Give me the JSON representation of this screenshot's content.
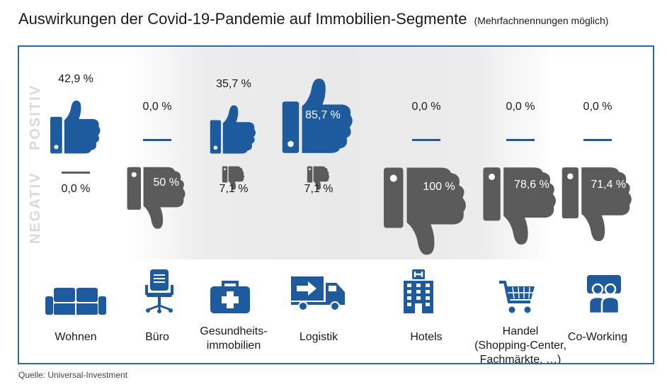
{
  "title": "Auswirkungen der Covid-19-Pandemie auf Immobilien-Segmente",
  "subtitle": "(Mehrfachnennungen möglich)",
  "source": "Quelle: Universal-Investment",
  "colors": {
    "positive": "#1d5b9e",
    "negative": "#5b5b5b",
    "frame": "#2a6aa8",
    "side_label": "#d9d9d9"
  },
  "chart_data": {
    "type": "table",
    "row_labels": [
      "POSITIV",
      "NEGATIV"
    ],
    "categories": [
      "Wohnen",
      "Büro",
      "Gesundheits-\nimmobilien",
      "Logistik",
      "Hotels",
      "Handel\n(Shopping-Center,\nFachmärkte, …)",
      "Co-Working"
    ],
    "icons": [
      "sofa-icon",
      "office-chair-icon",
      "first-aid-kit-icon",
      "delivery-truck-icon",
      "hotel-building-icon",
      "shopping-cart-icon",
      "coworking-people-icon"
    ],
    "series": [
      {
        "values": [
          42.9,
          0.0,
          35.7,
          85.7,
          0.0,
          0.0,
          0.0
        ],
        "labels": [
          "42,9 %",
          "0,0 %",
          "35,7 %",
          "85,7 %",
          "0,0 %",
          "0,0 %",
          "0,0 %"
        ]
      },
      {
        "values": [
          0.0,
          50.0,
          7.1,
          7.1,
          100.0,
          78.6,
          71.4
        ],
        "labels": [
          "0,0 %",
          "50 %",
          "7,1 %",
          "7,1 %",
          "100 %",
          "78,6 %",
          "71,4 %"
        ]
      }
    ]
  }
}
